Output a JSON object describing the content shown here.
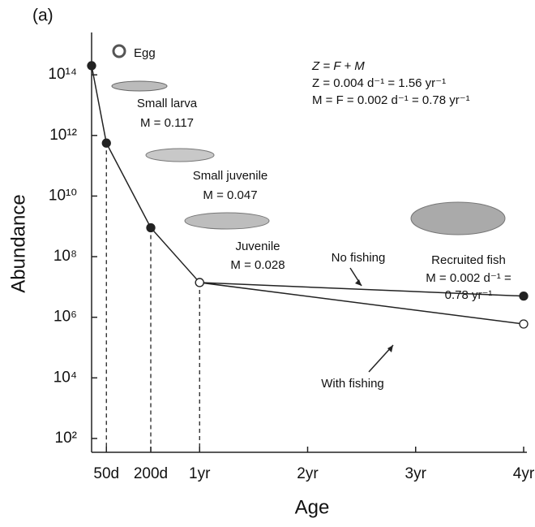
{
  "chart_data": {
    "type": "line",
    "log_scale": true,
    "panel_label": "(a)",
    "xlabel": "Age",
    "ylabel": "Abundance",
    "x": [
      0,
      50,
      200,
      365,
      1460
    ],
    "xlim": [
      0,
      1460
    ],
    "xticks": [
      {
        "value": 50,
        "label": "50d"
      },
      {
        "value": 200,
        "label": "200d"
      },
      {
        "value": 365,
        "label": "1yr"
      },
      {
        "value": 730,
        "label": "2yr"
      },
      {
        "value": 1095,
        "label": "3yr"
      },
      {
        "value": 1460,
        "label": "4yr"
      }
    ],
    "ylim": [
      35,
      2500000000000000
    ],
    "yticks": [
      {
        "value": 100,
        "label": "10²"
      },
      {
        "value": 10000,
        "label": "10⁴"
      },
      {
        "value": 1000000,
        "label": "10⁶"
      },
      {
        "value": 100000000,
        "label": "10⁸"
      },
      {
        "value": 10000000000,
        "label": "10¹⁰"
      },
      {
        "value": 1000000000000,
        "label": "10¹²"
      },
      {
        "value": 100000000000000,
        "label": "10¹⁴"
      }
    ],
    "series": [
      {
        "name": "No fishing",
        "color": "#222222",
        "values": [
          200000000000000,
          560000000000,
          900000000,
          14000000,
          5000000
        ]
      },
      {
        "name": "With fishing",
        "color": "#222222",
        "values": [
          null,
          null,
          null,
          14000000,
          600000
        ]
      }
    ],
    "annotations": [
      "Egg",
      "Small larva",
      "M = 0.117",
      "Small juvenile",
      "M = 0.047",
      "Juvenile",
      "M = 0.028",
      "Recruited fish",
      "M = 0.002 d⁻¹ =",
      "0.78 yr⁻¹",
      "Z = F + M",
      "Z = 0.004 d⁻¹ = 1.56 yr⁻¹",
      "M = F = 0.002 d⁻¹ = 0.78 yr⁻¹"
    ]
  }
}
